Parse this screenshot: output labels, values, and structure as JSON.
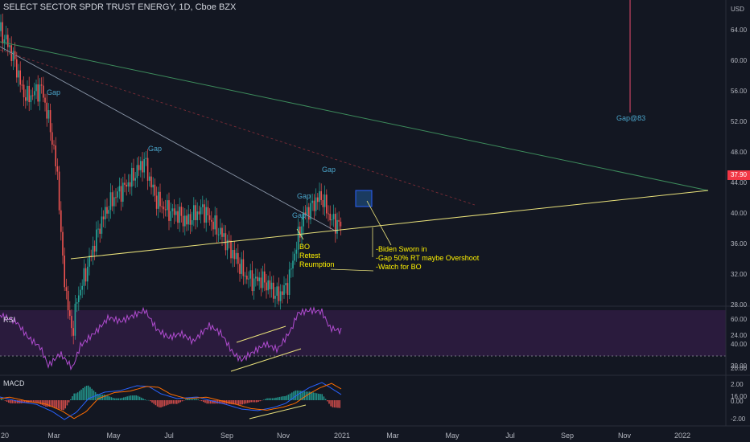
{
  "header": {
    "symbol_title": "SELECT SECTOR SPDR TRUST ENERGY, 1D, Cboe BZX"
  },
  "price_axis": {
    "currency": "USD",
    "ticks": [
      "64.00",
      "60.00",
      "56.00",
      "52.00",
      "48.00",
      "44.00",
      "40.00",
      "36.00",
      "32.00",
      "28.00",
      "24.00",
      "20.00",
      "16.00"
    ],
    "last_price": "37.90"
  },
  "time_axis": {
    "labels": [
      "20",
      "Mar",
      "May",
      "Jul",
      "Sep",
      "Nov",
      "2021",
      "Mar",
      "May",
      "Jul",
      "Sep",
      "Nov",
      "2022"
    ]
  },
  "rsi": {
    "title": "RSI",
    "ticks": [
      "60.00",
      "40.00",
      "20.00"
    ]
  },
  "macd": {
    "title": "MACD",
    "ticks": [
      "2.00",
      "0.00",
      "-2.00"
    ]
  },
  "annotations": {
    "gap_labels": [
      "Gap",
      "Gap",
      "Gap",
      "Gap",
      "Gap"
    ],
    "gap_target": "Gap@83",
    "bo_note": [
      "BO",
      "Retest",
      "Reumption"
    ],
    "biden_note": [
      "-Biden Sworn in",
      "-Gap 50% RT maybe Overshoot",
      "-Watch for BO"
    ]
  },
  "colors": {
    "background": "#131722",
    "up": "#26a69a",
    "down": "#ef5350",
    "rsi_line": "#b14cd1",
    "rsi_band": "#2a1b3d",
    "trendline": "#e8e07a",
    "macd_line": "#2962ff",
    "signal_line": "#ff6d00",
    "annotation": "#fff200",
    "gap_text": "#4aa3c8",
    "red_line": "#f23645"
  }
}
